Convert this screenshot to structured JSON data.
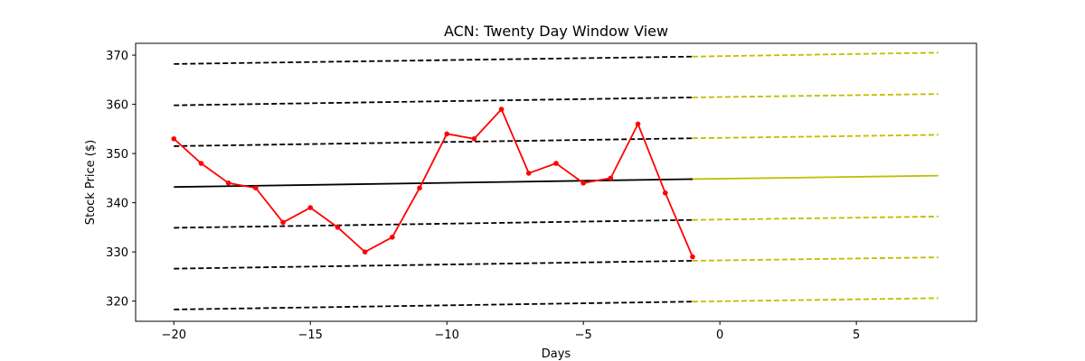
{
  "chart_data": {
    "type": "line",
    "title": "ACN: Twenty Day Window View",
    "xlabel": "Days",
    "ylabel": "Stock Price ($)",
    "xlim": [
      -21.4,
      9.4
    ],
    "ylim": [
      315.9,
      372.4
    ],
    "xticks": [
      -20,
      -15,
      -10,
      -5,
      0,
      5
    ],
    "xtick_labels": [
      "−20",
      "−15",
      "−10",
      "−5",
      "0",
      "5"
    ],
    "yticks": [
      320,
      330,
      340,
      350,
      360,
      370
    ],
    "ytick_labels": [
      "320",
      "330",
      "340",
      "350",
      "360",
      "370"
    ],
    "grid": false,
    "legend": "none",
    "price_series": {
      "color": "#ff0000",
      "x": [
        -20,
        -19,
        -18,
        -17,
        -16,
        -15,
        -14,
        -13,
        -12,
        -11,
        -10,
        -9,
        -8,
        -7,
        -6,
        -5,
        -4,
        -3,
        -2,
        -1
      ],
      "y": [
        353,
        348,
        344,
        343,
        336,
        339,
        335,
        330,
        333,
        343,
        354,
        353,
        359,
        346,
        348,
        344,
        345,
        356,
        342,
        329
      ]
    },
    "trend_lines": {
      "historical_color": "#000000",
      "projection_color": "#bfbf00",
      "split_x": -1,
      "end_x": 8,
      "lines": [
        {
          "style": "dashed",
          "start_y": 368.2,
          "split_y": 369.7,
          "end_y": 370.5
        },
        {
          "style": "dashed",
          "start_y": 359.8,
          "split_y": 361.4,
          "end_y": 362.1
        },
        {
          "style": "dashed",
          "start_y": 351.5,
          "split_y": 353.1,
          "end_y": 353.8
        },
        {
          "style": "solid",
          "start_y": 343.2,
          "split_y": 344.8,
          "end_y": 345.5
        },
        {
          "style": "dashed",
          "start_y": 334.9,
          "split_y": 336.5,
          "end_y": 337.2
        },
        {
          "style": "dashed",
          "start_y": 326.6,
          "split_y": 328.2,
          "end_y": 328.9
        },
        {
          "style": "dashed",
          "start_y": 318.3,
          "split_y": 319.9,
          "end_y": 320.6
        }
      ],
      "start_x": -20
    }
  }
}
